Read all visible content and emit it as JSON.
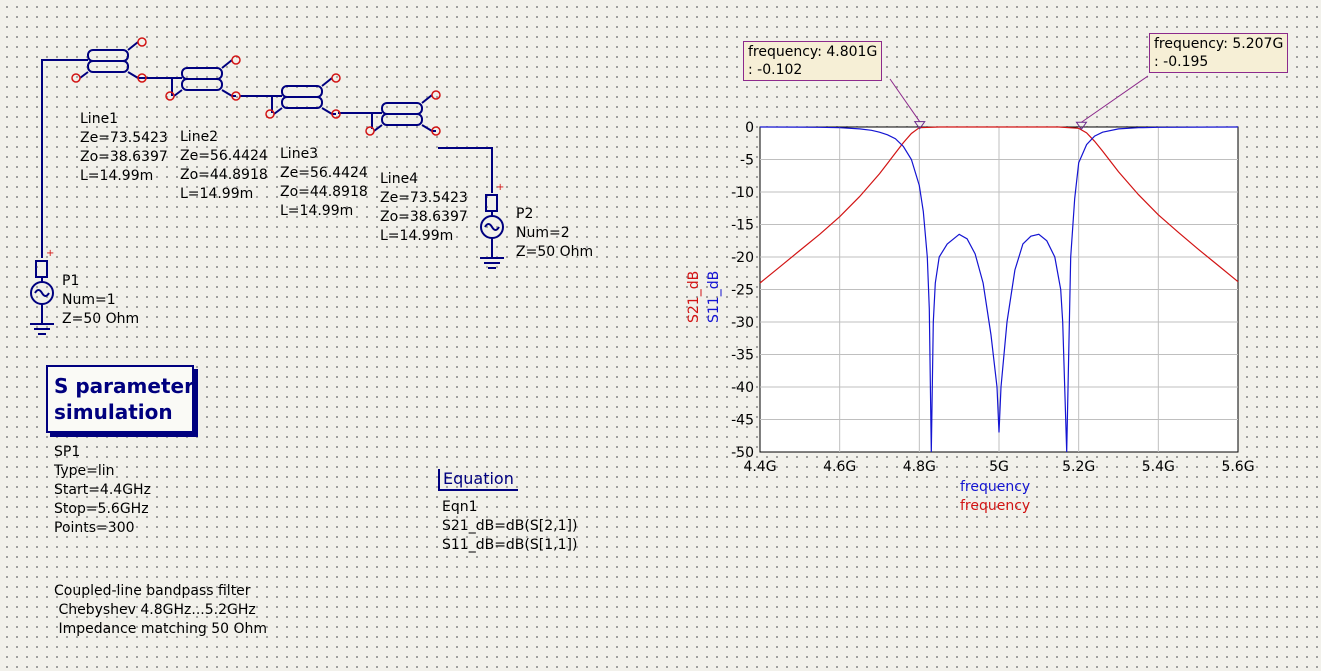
{
  "lines": [
    {
      "name": "Line1",
      "ze": "Ze=73.5423",
      "zo": "Zo=38.6397",
      "len": "L=14.99m"
    },
    {
      "name": "Line2",
      "ze": "Ze=56.4424",
      "zo": "Zo=44.8918",
      "len": "L=14.99m"
    },
    {
      "name": "Line3",
      "ze": "Ze=56.4424",
      "zo": "Zo=44.8918",
      "len": "L=14.99m"
    },
    {
      "name": "Line4",
      "ze": "Ze=73.5423",
      "zo": "Zo=38.6397",
      "len": "L=14.99m"
    }
  ],
  "ports": [
    {
      "name": "P1",
      "num": "Num=1",
      "z": "Z=50 Ohm"
    },
    {
      "name": "P2",
      "num": "Num=2",
      "z": "Z=50 Ohm"
    }
  ],
  "simulation": {
    "title_line1": "S parameter",
    "title_line2": "simulation",
    "name": "SP1",
    "type": "Type=lin",
    "start": "Start=4.4GHz",
    "stop": "Stop=5.6GHz",
    "points": "Points=300"
  },
  "equation": {
    "header": "Equation",
    "name": "Eqn1",
    "eq1": "S21_dB=dB(S[2,1])",
    "eq2": "S11_dB=dB(S[1,1])"
  },
  "notes": {
    "line1": "Coupled-line bandpass filter",
    "line2": " Chebyshev 4.8GHz...5.2GHz",
    "line3": " Impedance matching 50 Ohm"
  },
  "markers": [
    {
      "label": "frequency: 4.801G",
      "value": ": -0.102",
      "x": 4.801,
      "y": -0.102
    },
    {
      "label": "frequency: 5.207G",
      "value": ": -0.195",
      "x": 5.207,
      "y": -0.195
    }
  ],
  "colors": {
    "s21": "#d21414",
    "s11": "#1414d2",
    "wire": "#00007f",
    "grid": "#bfbfbf"
  },
  "chart_data": {
    "type": "line",
    "xlabel_series": [
      "frequency",
      "frequency"
    ],
    "ylabel_series": [
      "S21_dB",
      "S11_dB"
    ],
    "xlim": [
      4.4,
      5.6
    ],
    "ylim": [
      -50,
      0
    ],
    "grid": true,
    "x_ticks": [
      "4.4G",
      "4.6G",
      "4.8G",
      "5G",
      "5.2G",
      "5.4G",
      "5.6G"
    ],
    "y_ticks": [
      "0",
      "-5",
      "-10",
      "-15",
      "-20",
      "-25",
      "-30",
      "-35",
      "-40",
      "-45",
      "-50"
    ],
    "series": [
      {
        "name": "S21_dB",
        "color": "#d21414",
        "x": [
          4.4,
          4.45,
          4.5,
          4.55,
          4.6,
          4.65,
          4.7,
          4.72,
          4.74,
          4.76,
          4.78,
          4.8,
          4.85,
          4.9,
          4.95,
          5.0,
          5.05,
          5.1,
          5.15,
          5.2,
          5.22,
          5.24,
          5.26,
          5.28,
          5.3,
          5.35,
          5.4,
          5.45,
          5.5,
          5.55,
          5.6
        ],
        "y": [
          -24,
          -21.5,
          -19,
          -16.5,
          -13.8,
          -10.7,
          -7.2,
          -5.6,
          -4.0,
          -2.4,
          -1.0,
          -0.1,
          0,
          0,
          0,
          0,
          0,
          0,
          0,
          -0.2,
          -0.9,
          -2.2,
          -3.7,
          -5.3,
          -6.9,
          -10.4,
          -13.5,
          -16.2,
          -18.8,
          -21.3,
          -23.8
        ]
      },
      {
        "name": "S11_dB",
        "color": "#1414d2",
        "x": [
          4.4,
          4.5,
          4.55,
          4.6,
          4.65,
          4.68,
          4.7,
          4.72,
          4.74,
          4.76,
          4.78,
          4.8,
          4.81,
          4.82,
          4.825,
          4.83,
          4.835,
          4.84,
          4.85,
          4.87,
          4.9,
          4.92,
          4.94,
          4.96,
          4.98,
          4.995,
          5.0,
          5.005,
          5.02,
          5.04,
          5.06,
          5.08,
          5.1,
          5.12,
          5.14,
          5.155,
          5.16,
          5.165,
          5.17,
          5.175,
          5.18,
          5.19,
          5.2,
          5.22,
          5.24,
          5.26,
          5.3,
          5.35,
          5.4,
          5.5,
          5.6
        ],
        "y": [
          0,
          -0.02,
          -0.05,
          -0.1,
          -0.3,
          -0.5,
          -0.8,
          -1.2,
          -1.8,
          -3,
          -5,
          -9,
          -13,
          -20,
          -28,
          -50,
          -30,
          -24,
          -20,
          -18,
          -16.5,
          -17.2,
          -19.5,
          -24,
          -32,
          -40,
          -47,
          -40,
          -30,
          -22,
          -18,
          -16.8,
          -16.5,
          -17.5,
          -20,
          -25,
          -30,
          -40,
          -50,
          -35,
          -20,
          -11,
          -5.5,
          -2.7,
          -1.4,
          -0.8,
          -0.3,
          -0.1,
          -0.04,
          -0.01,
          0
        ]
      }
    ]
  }
}
